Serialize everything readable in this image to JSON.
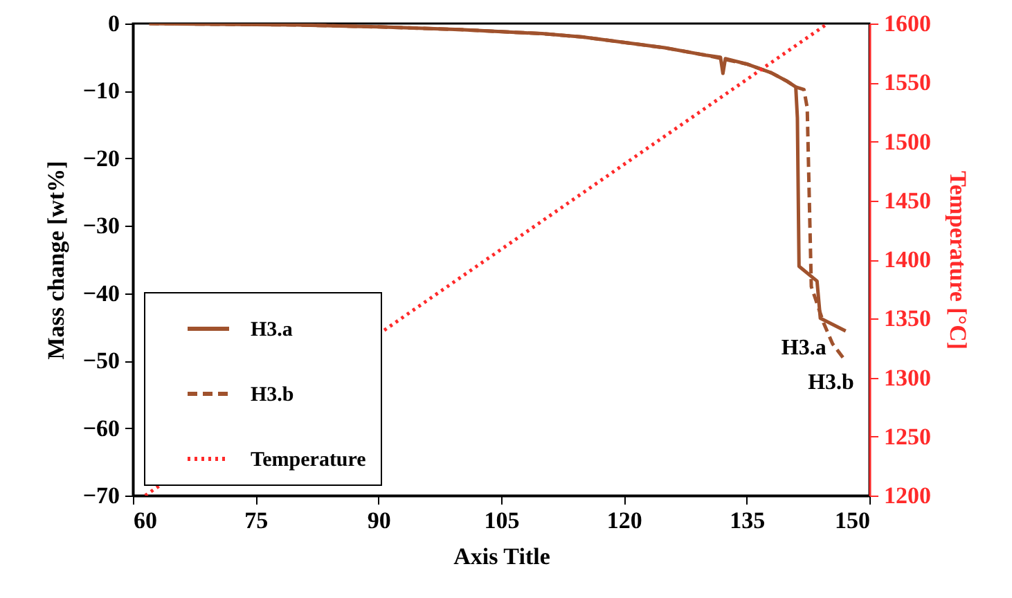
{
  "chart_data": {
    "type": "line",
    "xlabel": "Axis Title",
    "ylabel": "Mass change [wt%]",
    "y2label": "Temperature [°C]",
    "xlim": [
      60,
      150
    ],
    "xticks": [
      60,
      75,
      90,
      105,
      120,
      135,
      150
    ],
    "ylim": [
      -70,
      0
    ],
    "yticks": [
      -70,
      -60,
      -50,
      -40,
      -30,
      -20,
      -10,
      0
    ],
    "y2lim": [
      1200,
      1600
    ],
    "y2ticks": [
      1200,
      1250,
      1300,
      1350,
      1400,
      1450,
      1500,
      1550,
      1600
    ],
    "grid": false,
    "legend": "bottom left",
    "series": [
      {
        "name": "H3.a",
        "color": "#a0522d",
        "line_style": "solid",
        "x": [
          62,
          70,
          80,
          90,
          100,
          110,
          115,
          120,
          125,
          130,
          131.8,
          132.1,
          132.4,
          135,
          138,
          140,
          141,
          141.2,
          141.4,
          143.6,
          144,
          147.1
        ],
        "values": [
          0,
          -0.1,
          -0.2,
          -0.5,
          -0.9,
          -1.5,
          -2.0,
          -2.8,
          -3.6,
          -4.7,
          -5.0,
          -7.4,
          -5.2,
          -6.0,
          -7.3,
          -8.6,
          -9.4,
          -14,
          -36,
          -38.2,
          -43.7,
          -45.6
        ]
      },
      {
        "name": "H3.b",
        "color": "#a0522d",
        "line_style": "dashed",
        "x": [
          62,
          70,
          80,
          90,
          100,
          110,
          115,
          120,
          125,
          130,
          135,
          138,
          140,
          141,
          142,
          142.4,
          142.9,
          144.4,
          145.5,
          147
        ],
        "values": [
          0,
          -0.1,
          -0.2,
          -0.5,
          -0.9,
          -1.5,
          -2.0,
          -2.8,
          -3.6,
          -4.7,
          -6.0,
          -7.3,
          -8.6,
          -9.4,
          -9.8,
          -12.5,
          -39,
          -44.4,
          -47.5,
          -49.9
        ]
      },
      {
        "name": "Temperature",
        "color": "#ff2a2a",
        "line_style": "dotted",
        "axis": "y2",
        "x": [
          61.5,
          144.9
        ],
        "values": [
          1200,
          1600
        ]
      }
    ],
    "annotations": [
      "H3.a",
      "H3.b"
    ]
  }
}
